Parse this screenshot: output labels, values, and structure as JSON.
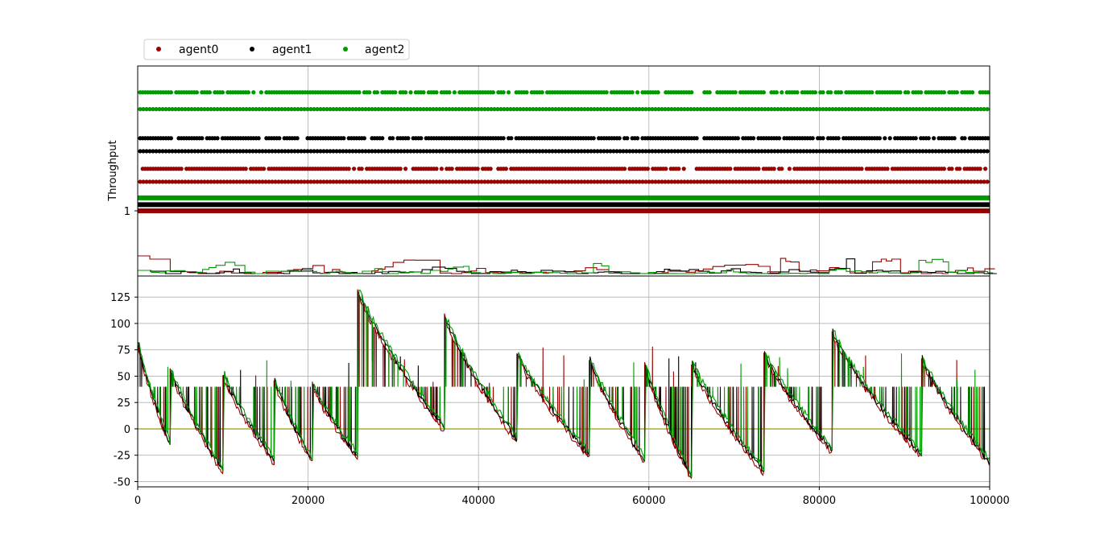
{
  "chart_data": [
    {
      "type": "scatter",
      "panel": "top",
      "title": "",
      "xlabel": "",
      "ylabel": "Throughput",
      "xlim": [
        0,
        100000
      ],
      "y_ticks": [
        "1"
      ],
      "grid": true,
      "legend": {
        "placement": "top-left, above plot",
        "entries": [
          {
            "name": "agent0",
            "color": "#990000"
          },
          {
            "name": "agent1",
            "color": "#000000"
          },
          {
            "name": "agent2",
            "color": "#009900"
          }
        ]
      },
      "series": [
        {
          "name": "agent0",
          "color": "#990000",
          "dot_rows": [
            1.55,
            1.38
          ],
          "band": 1.0
        },
        {
          "name": "agent1",
          "color": "#000000",
          "dot_rows": [
            1.95,
            1.78
          ],
          "band": 1.08
        },
        {
          "name": "agent2",
          "color": "#009900",
          "dot_rows": [
            2.55,
            2.33
          ],
          "band": 1.17
        }
      ],
      "step_traces": {
        "baseline_ratio": 0.0,
        "typical_peak": 0.1,
        "max_peak": 0.3
      },
      "x_ticks_visible": false
    },
    {
      "type": "line",
      "panel": "bottom",
      "title": "",
      "xlabel": "",
      "ylabel": "",
      "xlim": [
        0,
        100000
      ],
      "ylim": [
        -55,
        145
      ],
      "x_ticks": [
        0,
        20000,
        40000,
        60000,
        80000,
        100000
      ],
      "y_ticks": [
        -50,
        -25,
        0,
        25,
        50,
        75,
        100,
        125
      ],
      "grid": true,
      "reference_line": {
        "y": 0,
        "color": "#bfbf66"
      },
      "series": [
        {
          "name": "agent0",
          "color": "#990000"
        },
        {
          "name": "agent1",
          "color": "#000000"
        },
        {
          "name": "agent2",
          "color": "#009900"
        }
      ],
      "notable_values": {
        "global_max": 138,
        "global_min": -46,
        "common_plateau": 40
      },
      "segments": [
        {
          "x": [
            0,
            3800
          ],
          "start": 85,
          "end": -15
        },
        {
          "x": [
            3800,
            10000
          ],
          "start": 60,
          "end": -40
        },
        {
          "x": [
            10000,
            16000
          ],
          "start": 55,
          "end": -30
        },
        {
          "x": [
            16000,
            20500
          ],
          "start": 50,
          "end": -30
        },
        {
          "x": [
            20500,
            25800
          ],
          "start": 45,
          "end": -26
        },
        {
          "x": [
            25800,
            36000
          ],
          "start": 135,
          "end": 0
        },
        {
          "x": [
            36000,
            44500
          ],
          "start": 110,
          "end": -10
        },
        {
          "x": [
            44500,
            53000
          ],
          "start": 75,
          "end": -25
        },
        {
          "x": [
            53000,
            59500
          ],
          "start": 70,
          "end": -30
        },
        {
          "x": [
            59500,
            65000
          ],
          "start": 65,
          "end": -46
        },
        {
          "x": [
            65000,
            73500
          ],
          "start": 65,
          "end": -40
        },
        {
          "x": [
            73500,
            81500
          ],
          "start": 75,
          "end": -20
        },
        {
          "x": [
            81500,
            92000
          ],
          "start": 95,
          "end": -25
        },
        {
          "x": [
            92000,
            100000
          ],
          "start": 70,
          "end": -32
        }
      ]
    }
  ]
}
